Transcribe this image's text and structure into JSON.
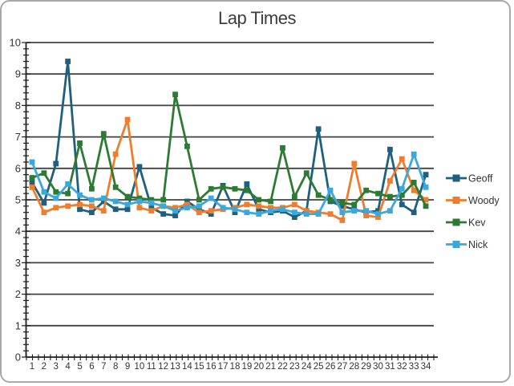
{
  "window": {
    "background": "#ffffff",
    "border_color": "#a8a8a8"
  },
  "chart_data": {
    "type": "line",
    "title": "Lap Times",
    "xlabel": "",
    "ylabel": "",
    "x_categories": [
      1,
      2,
      3,
      4,
      5,
      6,
      7,
      8,
      9,
      10,
      11,
      12,
      13,
      14,
      15,
      16,
      17,
      18,
      19,
      20,
      21,
      22,
      23,
      24,
      25,
      26,
      27,
      28,
      29,
      30,
      31,
      32,
      33,
      34
    ],
    "y_axis": {
      "min": 0,
      "max": 10,
      "major_step": 1,
      "minor_step": 0.2
    },
    "grid": true,
    "legend_position": "right",
    "marker": "square",
    "series": [
      {
        "name": "Geoff",
        "color": "#20607f",
        "values": [
          5.55,
          4.9,
          6.15,
          9.4,
          4.7,
          4.6,
          4.95,
          4.7,
          4.7,
          6.05,
          4.75,
          4.55,
          4.5,
          4.95,
          4.7,
          4.55,
          5.45,
          4.6,
          5.5,
          4.7,
          4.6,
          4.65,
          4.45,
          4.65,
          7.25,
          4.95,
          4.8,
          4.7,
          4.6,
          4.65,
          6.6,
          4.85,
          4.6,
          5.8
        ]
      },
      {
        "name": "Woody",
        "color": "#ef7d2c",
        "values": [
          5.4,
          4.6,
          4.75,
          4.8,
          4.85,
          4.8,
          4.65,
          6.45,
          7.55,
          4.75,
          4.65,
          4.8,
          4.75,
          4.85,
          4.6,
          4.65,
          4.7,
          4.75,
          4.85,
          4.8,
          4.75,
          4.75,
          4.85,
          4.65,
          4.6,
          4.55,
          4.35,
          6.15,
          4.5,
          4.45,
          5.6,
          6.3,
          5.3,
          5.0
        ]
      },
      {
        "name": "Kev",
        "color": "#2d7b33",
        "values": [
          5.7,
          5.85,
          5.25,
          5.2,
          6.8,
          5.35,
          7.1,
          5.4,
          5.1,
          5.05,
          5.0,
          5.0,
          8.35,
          6.7,
          5.0,
          5.35,
          5.4,
          5.35,
          5.3,
          5.0,
          4.95,
          6.65,
          5.1,
          5.85,
          5.15,
          5.0,
          4.9,
          4.85,
          5.3,
          5.2,
          5.1,
          5.15,
          5.55,
          4.8
        ]
      },
      {
        "name": "Nick",
        "color": "#3ba8db",
        "values": [
          6.2,
          5.25,
          5.05,
          5.5,
          5.15,
          5.0,
          5.05,
          4.95,
          4.85,
          4.95,
          4.9,
          4.8,
          4.65,
          4.75,
          4.8,
          5.05,
          4.75,
          4.7,
          4.6,
          4.55,
          4.65,
          4.7,
          4.6,
          4.55,
          4.55,
          5.3,
          4.6,
          4.65,
          4.65,
          4.55,
          4.65,
          5.35,
          6.45,
          5.4
        ]
      }
    ]
  },
  "styles": {
    "gridline_color": "#424242",
    "axis_color": "#1f1f1f",
    "text_color": "#333333",
    "title_color": "#3c3c3c"
  }
}
